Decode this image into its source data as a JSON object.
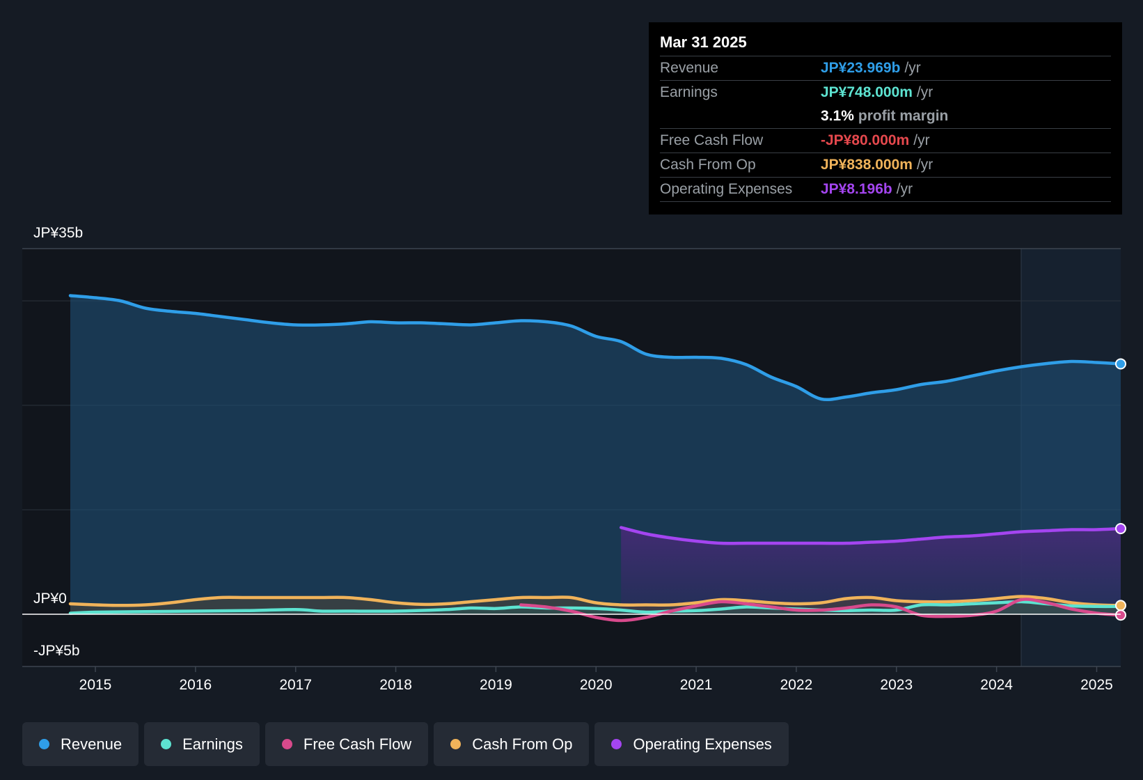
{
  "tooltip": {
    "date": "Mar 31 2025",
    "rows": [
      {
        "label": "Revenue",
        "value": "JP¥23.969b",
        "unit": "/yr",
        "color": "#2f9ee8"
      },
      {
        "label": "Earnings",
        "value": "JP¥748.000m",
        "unit": "/yr",
        "color": "#5de3d1"
      },
      {
        "label": "",
        "value": "3.1%",
        "unit": "profit margin",
        "color": "#ffffff"
      },
      {
        "label": "Free Cash Flow",
        "value": "-JP¥80.000m",
        "unit": "/yr",
        "color": "#e5484d"
      },
      {
        "label": "Cash From Op",
        "value": "JP¥838.000m",
        "unit": "/yr",
        "color": "#f0b35a"
      },
      {
        "label": "Operating Expenses",
        "value": "JP¥8.196b",
        "unit": "/yr",
        "color": "#a445f0"
      }
    ]
  },
  "legend": [
    {
      "label": "Revenue",
      "color": "#2f9ee8"
    },
    {
      "label": "Earnings",
      "color": "#5de3d1"
    },
    {
      "label": "Free Cash Flow",
      "color": "#d84a8c"
    },
    {
      "label": "Cash From Op",
      "color": "#f0b35a"
    },
    {
      "label": "Operating Expenses",
      "color": "#a445f0"
    }
  ],
  "chart_data": {
    "type": "area",
    "ylim": [
      -5,
      35
    ],
    "xlim": [
      2014.27,
      2025.24
    ],
    "y_axis_labels": [
      {
        "label": "JP¥35b",
        "value": 35
      },
      {
        "label": "JP¥0",
        "value": 0
      },
      {
        "label": "-JP¥5b",
        "value": -5
      }
    ],
    "x_ticks": [
      {
        "label": "2015",
        "value": 2015
      },
      {
        "label": "2016",
        "value": 2016
      },
      {
        "label": "2017",
        "value": 2017
      },
      {
        "label": "2018",
        "value": 2018
      },
      {
        "label": "2019",
        "value": 2019
      },
      {
        "label": "2020",
        "value": 2020
      },
      {
        "label": "2021",
        "value": 2021
      },
      {
        "label": "2022",
        "value": 2022
      },
      {
        "label": "2023",
        "value": 2023
      },
      {
        "label": "2024",
        "value": 2024
      },
      {
        "label": "2025",
        "value": 2025
      }
    ],
    "gridlines": [
      30,
      20,
      10
    ],
    "forecast_start": 2024.25,
    "series": [
      {
        "name": "Revenue",
        "color": "#2f9ee8",
        "fill": true,
        "end_marker": true,
        "points": [
          [
            2014.75,
            30.5
          ],
          [
            2015.0,
            30.3
          ],
          [
            2015.25,
            30.0
          ],
          [
            2015.5,
            29.3
          ],
          [
            2015.75,
            29.0
          ],
          [
            2016.0,
            28.8
          ],
          [
            2016.25,
            28.5
          ],
          [
            2016.5,
            28.2
          ],
          [
            2016.75,
            27.9
          ],
          [
            2017.0,
            27.7
          ],
          [
            2017.25,
            27.7
          ],
          [
            2017.5,
            27.8
          ],
          [
            2017.75,
            28.0
          ],
          [
            2018.0,
            27.9
          ],
          [
            2018.25,
            27.9
          ],
          [
            2018.5,
            27.8
          ],
          [
            2018.75,
            27.7
          ],
          [
            2019.0,
            27.9
          ],
          [
            2019.25,
            28.1
          ],
          [
            2019.5,
            28.0
          ],
          [
            2019.75,
            27.6
          ],
          [
            2020.0,
            26.6
          ],
          [
            2020.25,
            26.1
          ],
          [
            2020.5,
            24.9
          ],
          [
            2020.75,
            24.6
          ],
          [
            2021.0,
            24.6
          ],
          [
            2021.25,
            24.5
          ],
          [
            2021.5,
            23.9
          ],
          [
            2021.75,
            22.7
          ],
          [
            2022.0,
            21.8
          ],
          [
            2022.25,
            20.6
          ],
          [
            2022.5,
            20.8
          ],
          [
            2022.75,
            21.2
          ],
          [
            2023.0,
            21.5
          ],
          [
            2023.25,
            22.0
          ],
          [
            2023.5,
            22.3
          ],
          [
            2023.75,
            22.8
          ],
          [
            2024.0,
            23.3
          ],
          [
            2024.25,
            23.7
          ],
          [
            2024.5,
            24.0
          ],
          [
            2024.75,
            24.2
          ],
          [
            2025.0,
            24.1
          ],
          [
            2025.24,
            23.97
          ]
        ]
      },
      {
        "name": "Operating Expenses",
        "color": "#a445f0",
        "fill": true,
        "end_marker": true,
        "points": [
          [
            2020.25,
            8.3
          ],
          [
            2020.5,
            7.7
          ],
          [
            2020.75,
            7.3
          ],
          [
            2021.0,
            7.0
          ],
          [
            2021.25,
            6.8
          ],
          [
            2021.5,
            6.8
          ],
          [
            2021.75,
            6.8
          ],
          [
            2022.0,
            6.8
          ],
          [
            2022.25,
            6.8
          ],
          [
            2022.5,
            6.8
          ],
          [
            2022.75,
            6.9
          ],
          [
            2023.0,
            7.0
          ],
          [
            2023.25,
            7.2
          ],
          [
            2023.5,
            7.4
          ],
          [
            2023.75,
            7.5
          ],
          [
            2024.0,
            7.7
          ],
          [
            2024.25,
            7.9
          ],
          [
            2024.5,
            8.0
          ],
          [
            2024.75,
            8.1
          ],
          [
            2025.0,
            8.1
          ],
          [
            2025.24,
            8.2
          ]
        ]
      },
      {
        "name": "Cash From Op",
        "color": "#f0b35a",
        "fill": true,
        "end_marker": true,
        "points": [
          [
            2014.75,
            1.0
          ],
          [
            2015.0,
            0.9
          ],
          [
            2015.25,
            0.85
          ],
          [
            2015.5,
            0.9
          ],
          [
            2015.75,
            1.1
          ],
          [
            2016.0,
            1.4
          ],
          [
            2016.25,
            1.6
          ],
          [
            2016.5,
            1.6
          ],
          [
            2016.75,
            1.6
          ],
          [
            2017.0,
            1.6
          ],
          [
            2017.25,
            1.6
          ],
          [
            2017.5,
            1.6
          ],
          [
            2017.75,
            1.4
          ],
          [
            2018.0,
            1.1
          ],
          [
            2018.25,
            0.95
          ],
          [
            2018.5,
            1.0
          ],
          [
            2018.75,
            1.2
          ],
          [
            2019.0,
            1.4
          ],
          [
            2019.25,
            1.6
          ],
          [
            2019.5,
            1.6
          ],
          [
            2019.75,
            1.6
          ],
          [
            2020.0,
            1.1
          ],
          [
            2020.25,
            0.9
          ],
          [
            2020.5,
            0.9
          ],
          [
            2020.75,
            0.9
          ],
          [
            2021.0,
            1.1
          ],
          [
            2021.25,
            1.4
          ],
          [
            2021.5,
            1.3
          ],
          [
            2021.75,
            1.1
          ],
          [
            2022.0,
            1.0
          ],
          [
            2022.25,
            1.1
          ],
          [
            2022.5,
            1.5
          ],
          [
            2022.75,
            1.6
          ],
          [
            2023.0,
            1.3
          ],
          [
            2023.25,
            1.2
          ],
          [
            2023.5,
            1.2
          ],
          [
            2023.75,
            1.3
          ],
          [
            2024.0,
            1.5
          ],
          [
            2024.25,
            1.7
          ],
          [
            2024.5,
            1.5
          ],
          [
            2024.75,
            1.1
          ],
          [
            2025.0,
            0.9
          ],
          [
            2025.24,
            0.84
          ]
        ]
      },
      {
        "name": "Earnings",
        "color": "#5de3d1",
        "fill": true,
        "end_marker": false,
        "points": [
          [
            2014.75,
            0.1
          ],
          [
            2015.0,
            0.2
          ],
          [
            2015.5,
            0.25
          ],
          [
            2016.0,
            0.3
          ],
          [
            2016.5,
            0.35
          ],
          [
            2017.0,
            0.45
          ],
          [
            2017.25,
            0.3
          ],
          [
            2017.5,
            0.3
          ],
          [
            2018.0,
            0.3
          ],
          [
            2018.5,
            0.45
          ],
          [
            2018.75,
            0.6
          ],
          [
            2019.0,
            0.55
          ],
          [
            2019.25,
            0.7
          ],
          [
            2019.5,
            0.6
          ],
          [
            2019.75,
            0.6
          ],
          [
            2020.0,
            0.55
          ],
          [
            2020.25,
            0.4
          ],
          [
            2020.5,
            0.2
          ],
          [
            2020.75,
            0.3
          ],
          [
            2021.0,
            0.35
          ],
          [
            2021.25,
            0.5
          ],
          [
            2021.5,
            0.7
          ],
          [
            2021.75,
            0.6
          ],
          [
            2022.0,
            0.5
          ],
          [
            2022.25,
            0.4
          ],
          [
            2022.5,
            0.35
          ],
          [
            2022.75,
            0.4
          ],
          [
            2023.0,
            0.4
          ],
          [
            2023.25,
            0.9
          ],
          [
            2023.5,
            0.9
          ],
          [
            2023.75,
            1.0
          ],
          [
            2024.0,
            1.1
          ],
          [
            2024.25,
            1.2
          ],
          [
            2024.5,
            1.0
          ],
          [
            2024.75,
            0.8
          ],
          [
            2025.0,
            0.75
          ],
          [
            2025.24,
            0.75
          ]
        ]
      },
      {
        "name": "Free Cash Flow",
        "color": "#d84a8c",
        "fill": false,
        "end_marker": true,
        "points": [
          [
            2019.25,
            0.9
          ],
          [
            2019.5,
            0.7
          ],
          [
            2019.75,
            0.3
          ],
          [
            2020.0,
            -0.3
          ],
          [
            2020.25,
            -0.6
          ],
          [
            2020.5,
            -0.3
          ],
          [
            2020.75,
            0.3
          ],
          [
            2021.0,
            0.8
          ],
          [
            2021.25,
            1.2
          ],
          [
            2021.5,
            1.0
          ],
          [
            2021.75,
            0.7
          ],
          [
            2022.0,
            0.4
          ],
          [
            2022.25,
            0.4
          ],
          [
            2022.5,
            0.6
          ],
          [
            2022.75,
            0.9
          ],
          [
            2023.0,
            0.7
          ],
          [
            2023.25,
            -0.1
          ],
          [
            2023.5,
            -0.2
          ],
          [
            2023.75,
            -0.1
          ],
          [
            2024.0,
            0.3
          ],
          [
            2024.25,
            1.4
          ],
          [
            2024.5,
            1.1
          ],
          [
            2024.75,
            0.5
          ],
          [
            2025.0,
            0.1
          ],
          [
            2025.24,
            -0.08
          ]
        ]
      }
    ]
  }
}
